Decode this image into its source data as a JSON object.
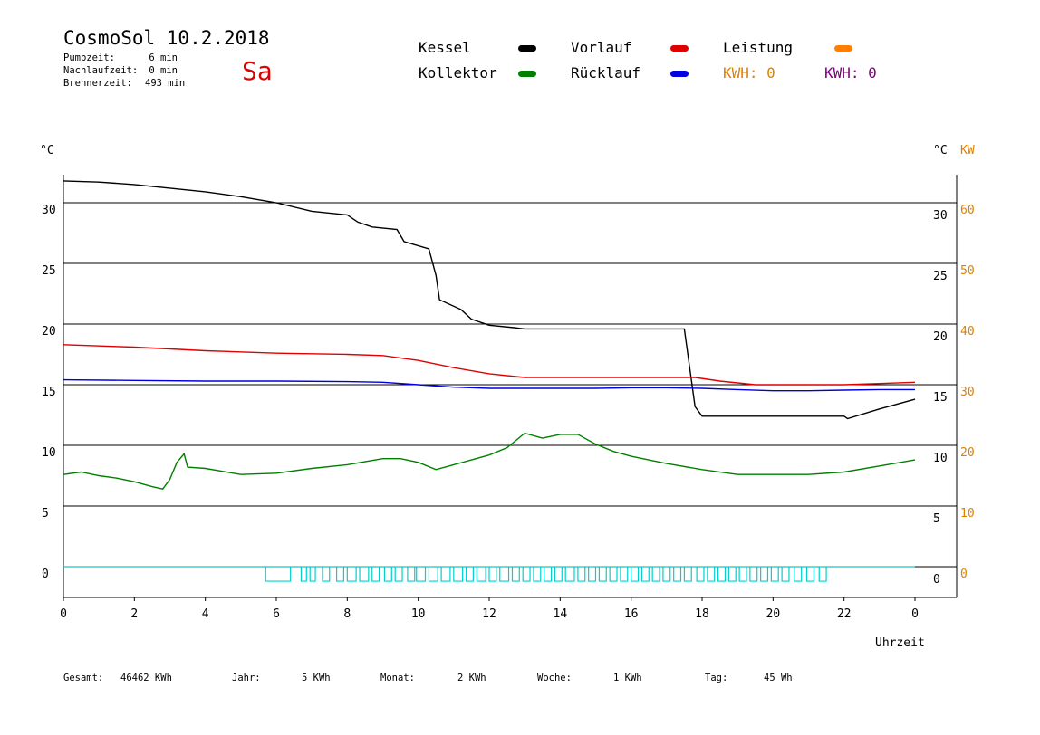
{
  "header": {
    "title": "CosmoSol 10.2.2018",
    "day": "Sa",
    "stats": [
      {
        "label": "Pumpzeit:",
        "value": "6 min"
      },
      {
        "label": "Nachlaufzeit:",
        "value": "0 min"
      },
      {
        "label": "Brennerzeit:",
        "value": "493 min"
      }
    ]
  },
  "legend": {
    "kessel": {
      "label": "Kessel",
      "color": "#000000"
    },
    "kollektor": {
      "label": "Kollektor",
      "color": "#008000"
    },
    "vorlauf": {
      "label": "Vorlauf",
      "color": "#e00000"
    },
    "ruecklauf": {
      "label": "Rücklauf",
      "color": "#0000e0"
    },
    "leistung": {
      "label": "Leistung",
      "color": "#ff8000"
    },
    "kwh_orange": {
      "label": "KWH: 0",
      "color": "#e08000"
    },
    "kwh_purple": {
      "label": "KWH: 0",
      "color": "#800080"
    }
  },
  "footer": {
    "gesamt_label": "Gesamt:",
    "gesamt_value": "46462 KWh",
    "jahr_label": "Jahr:",
    "jahr_value": "5 KWh",
    "monat_label": "Monat:",
    "monat_value": "2 KWh",
    "woche_label": "Woche:",
    "woche_value": "1 KWh",
    "tag_label": "Tag:",
    "tag_value": "45 Wh"
  },
  "chart_data": {
    "type": "line",
    "xlabel": "Uhrzeit",
    "ylabel_left": "°C",
    "ylabel_right": "°C",
    "ylabel_right2": "KW",
    "x_ticks": [
      "0",
      "2",
      "4",
      "6",
      "8",
      "10",
      "12",
      "14",
      "16",
      "18",
      "20",
      "22",
      "0"
    ],
    "y_ticks": [
      0,
      5,
      10,
      15,
      20,
      25,
      30
    ],
    "y_ticks_kw": [
      0,
      10,
      20,
      30,
      40,
      50,
      60
    ],
    "xlim": [
      0,
      25
    ],
    "ylim": [
      -2.5,
      32
    ],
    "grid": true,
    "series": [
      {
        "name": "Kessel",
        "color": "#000000",
        "x": [
          0,
          1,
          2,
          3,
          4,
          5,
          6,
          7,
          8,
          8.3,
          8.7,
          9.4,
          9.6,
          10.3,
          10.5,
          10.6,
          11.2,
          11.5,
          12,
          12.7,
          13,
          14,
          15,
          16,
          17.5,
          17.8,
          18,
          19,
          20,
          21,
          22,
          22.1,
          23,
          24
        ],
        "y": [
          31.8,
          31.7,
          31.5,
          31.2,
          30.9,
          30.5,
          30.0,
          29.3,
          29.0,
          28.4,
          28.0,
          27.8,
          26.8,
          26.2,
          24.0,
          22.0,
          21.2,
          20.4,
          19.9,
          19.7,
          19.6,
          19.6,
          19.6,
          19.6,
          19.6,
          13.2,
          12.4,
          12.4,
          12.4,
          12.4,
          12.4,
          12.2,
          13.0,
          13.8
        ]
      },
      {
        "name": "Vorlauf",
        "color": "#e00000",
        "x": [
          0,
          2,
          4,
          6,
          8,
          9,
          10,
          11,
          12,
          13,
          14,
          15,
          16,
          17,
          17.8,
          18.5,
          19.5,
          20,
          21,
          22,
          23,
          24
        ],
        "y": [
          18.3,
          18.1,
          17.8,
          17.6,
          17.5,
          17.4,
          17.0,
          16.4,
          15.9,
          15.6,
          15.6,
          15.6,
          15.6,
          15.6,
          15.6,
          15.3,
          15.0,
          15.0,
          15.0,
          15.0,
          15.1,
          15.2
        ]
      },
      {
        "name": "Rücklauf",
        "color": "#0000e0",
        "x": [
          0,
          2,
          4,
          6,
          8,
          9,
          10,
          11,
          12,
          13,
          14,
          15,
          16,
          17,
          18,
          19,
          20,
          21,
          22,
          23,
          24
        ],
        "y": [
          15.4,
          15.35,
          15.3,
          15.3,
          15.25,
          15.2,
          15.0,
          14.8,
          14.7,
          14.7,
          14.7,
          14.7,
          14.75,
          14.75,
          14.7,
          14.6,
          14.5,
          14.5,
          14.55,
          14.6,
          14.6
        ]
      },
      {
        "name": "Kollektor",
        "color": "#008000",
        "x": [
          0,
          0.5,
          1,
          1.5,
          2,
          2.5,
          2.8,
          3.0,
          3.2,
          3.4,
          3.5,
          4,
          5,
          6,
          7,
          8,
          9,
          9.5,
          10,
          10.5,
          11,
          11.5,
          12,
          12.5,
          13,
          13.5,
          14,
          14.5,
          15,
          15.5,
          16,
          17,
          18,
          19,
          20,
          21,
          22,
          23,
          24
        ],
        "y": [
          7.6,
          7.8,
          7.5,
          7.3,
          7.0,
          6.6,
          6.4,
          7.2,
          8.6,
          9.3,
          8.2,
          8.1,
          7.6,
          7.7,
          8.1,
          8.4,
          8.9,
          8.9,
          8.6,
          8.0,
          8.4,
          8.8,
          9.2,
          9.8,
          11.0,
          10.6,
          10.9,
          10.9,
          10.1,
          9.5,
          9.1,
          8.5,
          8.0,
          7.6,
          7.6,
          7.6,
          7.8,
          8.3,
          8.8
        ]
      }
    ],
    "leistung": {
      "name": "Leistung",
      "color": "#00d0d0",
      "baseline": 0,
      "pulse_height": -1.2,
      "pulses": [
        [
          5.7,
          6.4
        ],
        [
          6.7,
          6.85
        ],
        [
          6.95,
          7.1
        ],
        [
          7.3,
          7.5
        ],
        [
          7.7,
          7.9
        ],
        [
          8.0,
          8.25
        ],
        [
          8.35,
          8.6
        ],
        [
          8.7,
          8.9
        ],
        [
          9.05,
          9.25
        ],
        [
          9.35,
          9.55
        ],
        [
          9.7,
          9.9
        ],
        [
          9.95,
          10.2
        ],
        [
          10.3,
          10.55
        ],
        [
          10.65,
          10.9
        ],
        [
          11.0,
          11.25
        ],
        [
          11.35,
          11.55
        ],
        [
          11.65,
          11.9
        ],
        [
          12.0,
          12.2
        ],
        [
          12.3,
          12.55
        ],
        [
          12.65,
          12.85
        ],
        [
          12.95,
          13.15
        ],
        [
          13.25,
          13.45
        ],
        [
          13.55,
          13.75
        ],
        [
          13.85,
          14.05
        ],
        [
          14.15,
          14.4
        ],
        [
          14.5,
          14.7
        ],
        [
          14.8,
          15.0
        ],
        [
          15.1,
          15.3
        ],
        [
          15.4,
          15.6
        ],
        [
          15.7,
          15.9
        ],
        [
          16.0,
          16.2
        ],
        [
          16.3,
          16.5
        ],
        [
          16.6,
          16.8
        ],
        [
          16.9,
          17.1
        ],
        [
          17.2,
          17.4
        ],
        [
          17.5,
          17.7
        ],
        [
          17.85,
          18.05
        ],
        [
          18.15,
          18.35
        ],
        [
          18.45,
          18.65
        ],
        [
          18.75,
          18.95
        ],
        [
          19.05,
          19.25
        ],
        [
          19.35,
          19.55
        ],
        [
          19.65,
          19.85
        ],
        [
          19.95,
          20.15
        ],
        [
          20.25,
          20.45
        ],
        [
          20.6,
          20.8
        ],
        [
          20.95,
          21.15
        ],
        [
          21.3,
          21.5
        ]
      ]
    }
  }
}
